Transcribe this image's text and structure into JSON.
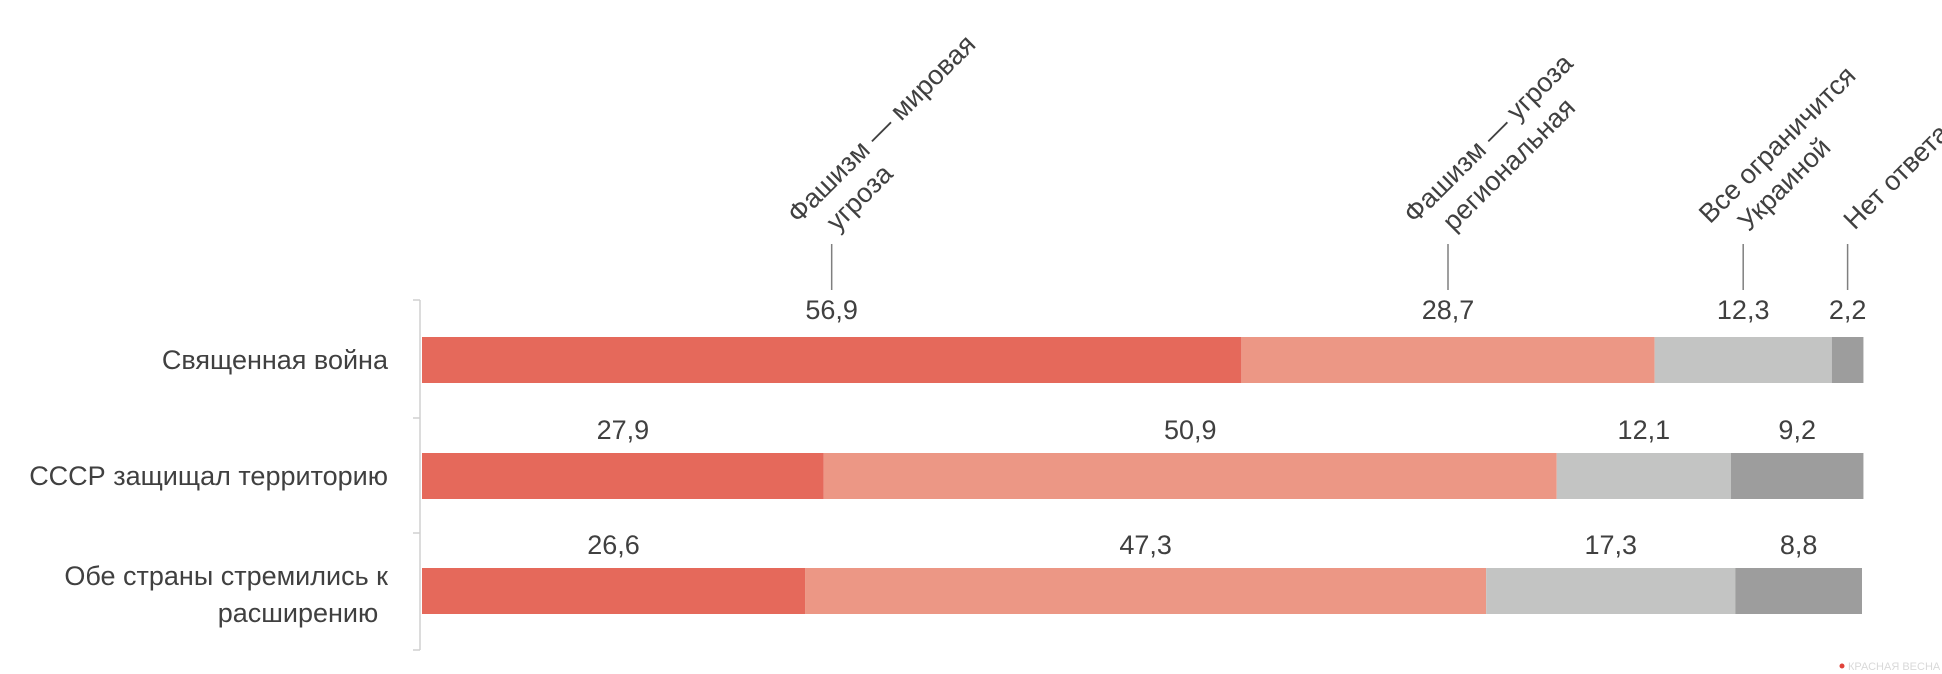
{
  "chart_data": {
    "type": "bar",
    "orientation": "horizontal",
    "stacked": true,
    "categories": [
      "Священная война",
      "СССР защищал территорию",
      "Обе страны стремились к расширению"
    ],
    "series": [
      {
        "name": "Фашизм — мировая угроза",
        "color": "#e5695b",
        "values": [
          56.9,
          27.9,
          26.6
        ],
        "labels": [
          "56,9",
          "27,9",
          "26,6"
        ]
      },
      {
        "name": "Фашизм — угроза региональная",
        "color": "#ec9785",
        "values": [
          28.7,
          50.9,
          47.3
        ],
        "labels": [
          "28,7",
          "50,9",
          "47,3"
        ]
      },
      {
        "name": "Все ограничится Украиной",
        "color": "#c3c4c3",
        "values": [
          12.3,
          12.1,
          17.3
        ],
        "labels": [
          "12,3",
          "12,1",
          "17,3"
        ]
      },
      {
        "name": "Нет ответа",
        "color": "#9d9d9d",
        "values": [
          2.2,
          9.2,
          8.8
        ],
        "labels": [
          "2,2",
          "9,2",
          "8,8"
        ]
      }
    ],
    "legend_placement": "top, angled labels with leader lines above first bar",
    "xlim": [
      0,
      100
    ],
    "grid": false
  },
  "watermark": "КРАСНАЯ ВЕСНА"
}
